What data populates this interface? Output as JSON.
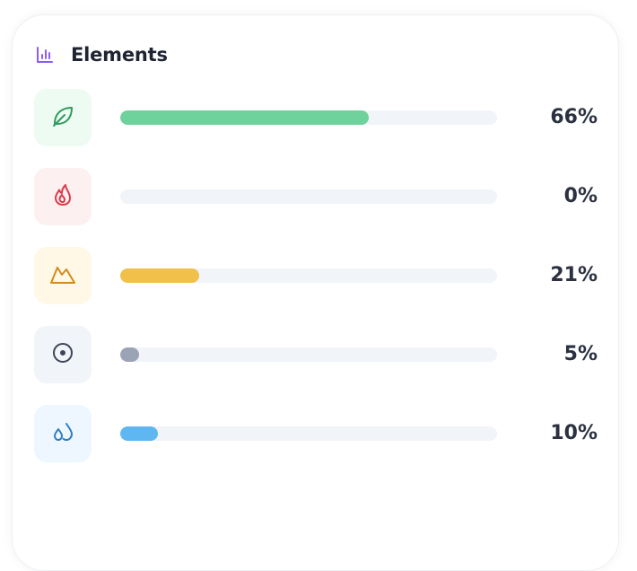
{
  "card": {
    "title": "Elements",
    "title_icon": "bar-chart-icon",
    "accent_color": "#8b5cf6"
  },
  "elements": [
    {
      "icon": "leaf-icon",
      "percent_label": "66%",
      "value": 66,
      "fill_color": "#6fd19b",
      "tile_color": "#edfbf3",
      "icon_color": "#2f9a5e"
    },
    {
      "icon": "flame-icon",
      "percent_label": "0%",
      "value": 0,
      "fill_color": "#f1a2a2",
      "tile_color": "#fdf0f0",
      "icon_color": "#dc3a4a"
    },
    {
      "icon": "mountain-icon",
      "percent_label": "21%",
      "value": 21,
      "fill_color": "#f0c04a",
      "tile_color": "#fff8e6",
      "icon_color": "#d48a1c"
    },
    {
      "icon": "circle-dot-icon",
      "percent_label": "5%",
      "value": 5,
      "fill_color": "#9aa4b6",
      "tile_color": "#f1f4f8",
      "icon_color": "#3e4657"
    },
    {
      "icon": "droplets-icon",
      "percent_label": "10%",
      "value": 10,
      "fill_color": "#5fb7f2",
      "tile_color": "#eef7ff",
      "icon_color": "#2f7ec4"
    }
  ]
}
